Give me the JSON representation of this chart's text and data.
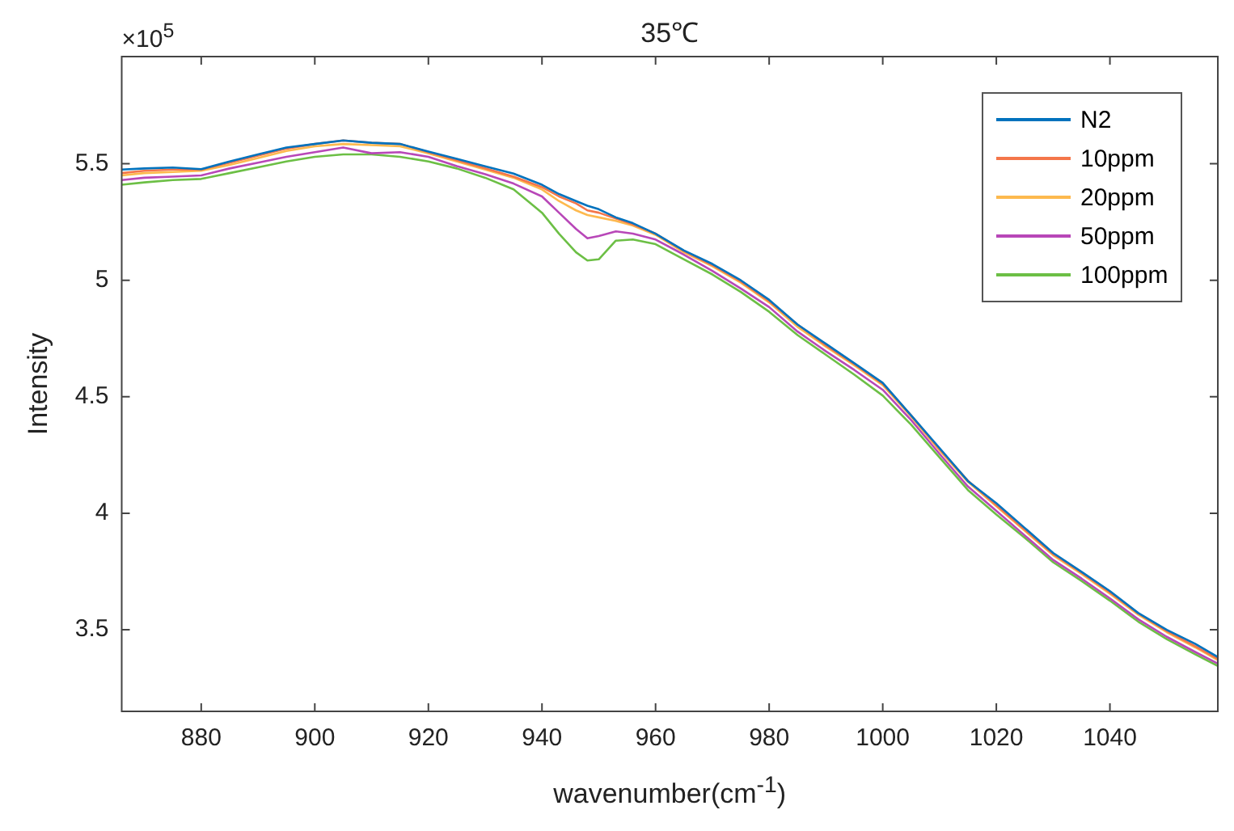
{
  "chart_data": {
    "type": "line",
    "title": "35℃",
    "xlabel": "wavenumber(cm$^{-1}$)",
    "ylabel": "Intensity",
    "annotations": [
      "×10$^{5}$"
    ],
    "x": [
      866,
      870,
      875,
      880,
      885,
      890,
      895,
      900,
      905,
      910,
      915,
      920,
      925,
      930,
      935,
      940,
      943,
      946,
      948,
      950,
      953,
      956,
      960,
      965,
      970,
      975,
      980,
      985,
      990,
      995,
      1000,
      1005,
      1010,
      1015,
      1020,
      1025,
      1030,
      1035,
      1040,
      1045,
      1050,
      1055,
      1059
    ],
    "series": [
      {
        "name": "N2",
        "color": "#0072bd",
        "values": [
          5.475,
          5.48,
          5.484,
          5.477,
          5.51,
          5.54,
          5.57,
          5.585,
          5.6,
          5.59,
          5.585,
          5.552,
          5.521,
          5.489,
          5.458,
          5.41,
          5.37,
          5.34,
          5.32,
          5.305,
          5.27,
          5.245,
          5.2,
          5.128,
          5.07,
          5.0,
          4.916,
          4.81,
          4.727,
          4.644,
          4.56,
          4.42,
          4.28,
          4.138,
          4.043,
          3.937,
          3.83,
          3.749,
          3.666,
          3.572,
          3.5,
          3.44,
          3.383
        ]
      },
      {
        "name": "10ppm",
        "color": "#f4764a",
        "values": [
          5.46,
          5.47,
          5.475,
          5.475,
          5.505,
          5.535,
          5.565,
          5.585,
          5.6,
          5.59,
          5.585,
          5.55,
          5.515,
          5.48,
          5.445,
          5.4,
          5.36,
          5.33,
          5.3,
          5.29,
          5.265,
          5.24,
          5.2,
          5.125,
          5.065,
          4.995,
          4.91,
          4.81,
          4.72,
          4.64,
          4.555,
          4.42,
          4.275,
          4.14,
          4.035,
          3.93,
          3.825,
          3.745,
          3.66,
          3.57,
          3.495,
          3.43,
          3.375
        ]
      },
      {
        "name": "20ppm",
        "color": "#fdb94e",
        "values": [
          5.45,
          5.46,
          5.465,
          5.47,
          5.495,
          5.525,
          5.555,
          5.575,
          5.585,
          5.58,
          5.575,
          5.545,
          5.51,
          5.475,
          5.44,
          5.39,
          5.34,
          5.3,
          5.28,
          5.27,
          5.255,
          5.235,
          5.195,
          5.12,
          5.06,
          4.99,
          4.905,
          4.8,
          4.715,
          4.635,
          4.55,
          4.415,
          4.27,
          4.135,
          4.03,
          3.925,
          3.82,
          3.74,
          3.655,
          3.565,
          3.49,
          3.425,
          3.37
        ]
      },
      {
        "name": "50ppm",
        "color": "#b847b8",
        "values": [
          5.43,
          5.44,
          5.445,
          5.45,
          5.48,
          5.505,
          5.53,
          5.55,
          5.57,
          5.545,
          5.55,
          5.53,
          5.49,
          5.455,
          5.415,
          5.36,
          5.29,
          5.22,
          5.18,
          5.19,
          5.21,
          5.2,
          5.175,
          5.11,
          5.04,
          4.965,
          4.885,
          4.78,
          4.695,
          4.615,
          4.53,
          4.4,
          4.255,
          4.115,
          4.01,
          3.905,
          3.8,
          3.72,
          3.635,
          3.545,
          3.47,
          3.405,
          3.355
        ]
      },
      {
        "name": "100ppm",
        "color": "#6cbf45",
        "values": [
          5.41,
          5.42,
          5.43,
          5.435,
          5.46,
          5.485,
          5.51,
          5.53,
          5.54,
          5.54,
          5.53,
          5.51,
          5.48,
          5.44,
          5.39,
          5.29,
          5.2,
          5.12,
          5.085,
          5.09,
          5.17,
          5.175,
          5.155,
          5.09,
          5.025,
          4.95,
          4.865,
          4.765,
          4.68,
          4.595,
          4.505,
          4.38,
          4.24,
          4.1,
          3.995,
          3.895,
          3.79,
          3.71,
          3.625,
          3.535,
          3.46,
          3.395,
          3.345
        ]
      }
    ],
    "xlim": [
      866,
      1059
    ],
    "xticks": [
      880,
      900,
      920,
      940,
      960,
      980,
      1000,
      1020,
      1040
    ],
    "ylim": [
      3.15,
      5.96
    ],
    "yticks": [
      3.5,
      4,
      4.5,
      5,
      5.5
    ],
    "grid": false,
    "legend": "top right",
    "marker": "none",
    "line_style": "solid"
  }
}
